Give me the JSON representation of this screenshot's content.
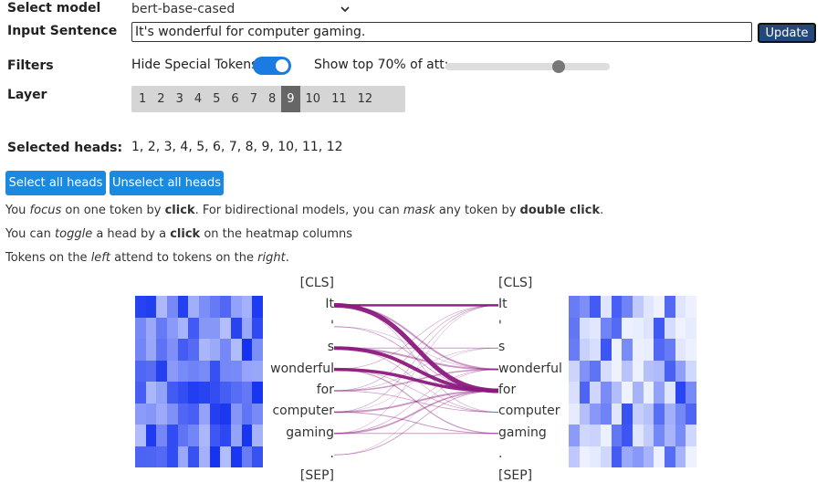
{
  "model": {
    "label": "Select model",
    "value": "bert-base-cased"
  },
  "input": {
    "label": "Input Sentence",
    "value": "It's wonderful for computer gaming.",
    "update_label": "Update"
  },
  "filters": {
    "label": "Filters",
    "hide_special": "Hide Special Tokens",
    "hide_special_on": true,
    "topk_label": "Show top 70% of att:",
    "topk_value": 70
  },
  "layer": {
    "label": "Layer",
    "options": [
      "1",
      "2",
      "3",
      "4",
      "5",
      "6",
      "7",
      "8",
      "9",
      "10",
      "11",
      "12"
    ],
    "selected": "9"
  },
  "heads": {
    "label": "Selected heads:",
    "value": "1, 2, 3, 4, 5, 6, 7, 8, 9, 10, 11, 12",
    "select_all": "Select all heads",
    "unselect_all": "Unselect all heads"
  },
  "notes": {
    "n1_a": "You ",
    "n1_b": "focus",
    "n1_c": " on one token by ",
    "n1_d": "click",
    "n1_e": ". For bidirectional models, you can ",
    "n1_f": "mask",
    "n1_g": " any token by ",
    "n1_h": "double click",
    "n1_i": ".",
    "n2_a": "You can ",
    "n2_b": "toggle",
    "n2_c": " a head by a ",
    "n2_d": "click",
    "n2_e": " on the heatmap columns",
    "n3_a": "Tokens on the ",
    "n3_b": "left",
    "n3_c": " attend to tokens on the ",
    "n3_d": "right",
    "n3_e": "."
  },
  "tokens": [
    "[CLS]",
    "It",
    "'",
    "s",
    "wonderful",
    "for",
    "computer",
    "gaming",
    ".",
    "[SEP]"
  ],
  "colors": {
    "accent": "#1a8ae0",
    "update": "#24487a",
    "link": "#8b1a7e"
  }
}
